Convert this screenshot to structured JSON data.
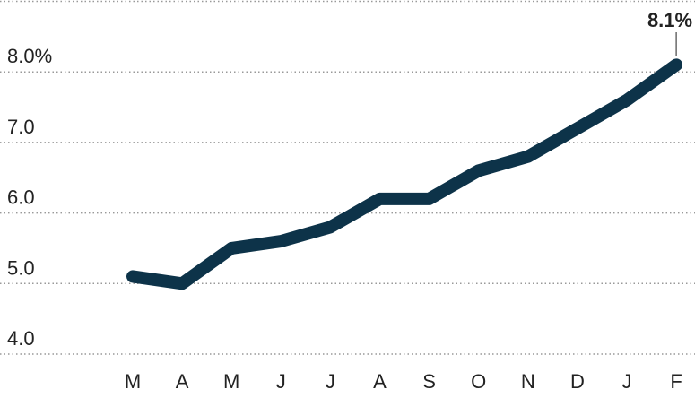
{
  "chart_data": {
    "type": "line",
    "categories": [
      "M",
      "A",
      "M",
      "J",
      "J",
      "A",
      "S",
      "O",
      "N",
      "D",
      "J",
      "F"
    ],
    "values": [
      5.1,
      5.0,
      5.5,
      5.6,
      5.8,
      6.2,
      6.2,
      6.6,
      6.8,
      7.2,
      7.6,
      8.1
    ],
    "value_labels": [
      null,
      null,
      null,
      null,
      null,
      null,
      null,
      null,
      null,
      null,
      null,
      "8.1%"
    ],
    "color": "#0d3349",
    "ylim": [
      4,
      9
    ],
    "yticks": [
      {
        "value": 4,
        "label": "4.0"
      },
      {
        "value": 5,
        "label": "5.0"
      },
      {
        "value": 6,
        "label": "6.0"
      },
      {
        "value": 7,
        "label": "7.0"
      },
      {
        "value": 8,
        "label": "8.0%"
      }
    ],
    "grid": true
  }
}
